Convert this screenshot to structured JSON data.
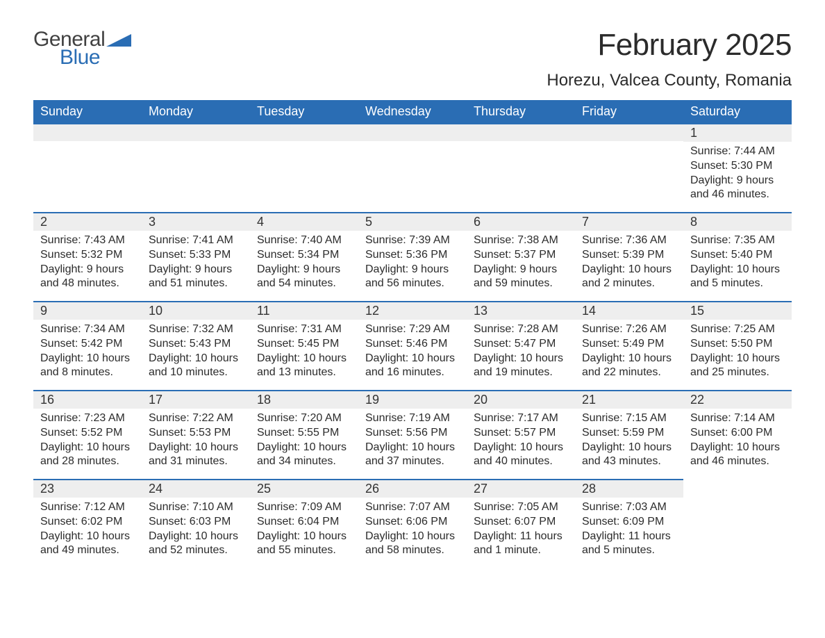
{
  "logo": {
    "general": "General",
    "blue": "Blue",
    "accent_color": "#2a6db4"
  },
  "title": "February 2025",
  "location": "Horezu, Valcea County, Romania",
  "colors": {
    "header_bg": "#2a6db4",
    "header_text": "#ffffff",
    "daynum_bg": "#eeeeee",
    "daynum_border": "#2a6db4",
    "body_text": "#2b2b2b",
    "page_bg": "#ffffff"
  },
  "typography": {
    "title_fontsize": 44,
    "location_fontsize": 24,
    "dow_fontsize": 18,
    "daynum_fontsize": 18,
    "body_fontsize": 16
  },
  "days_of_week": [
    "Sunday",
    "Monday",
    "Tuesday",
    "Wednesday",
    "Thursday",
    "Friday",
    "Saturday"
  ],
  "weeks": [
    [
      null,
      null,
      null,
      null,
      null,
      null,
      {
        "n": "1",
        "sunrise": "Sunrise: 7:44 AM",
        "sunset": "Sunset: 5:30 PM",
        "dl1": "Daylight: 9 hours",
        "dl2": "and 46 minutes."
      }
    ],
    [
      {
        "n": "2",
        "sunrise": "Sunrise: 7:43 AM",
        "sunset": "Sunset: 5:32 PM",
        "dl1": "Daylight: 9 hours",
        "dl2": "and 48 minutes."
      },
      {
        "n": "3",
        "sunrise": "Sunrise: 7:41 AM",
        "sunset": "Sunset: 5:33 PM",
        "dl1": "Daylight: 9 hours",
        "dl2": "and 51 minutes."
      },
      {
        "n": "4",
        "sunrise": "Sunrise: 7:40 AM",
        "sunset": "Sunset: 5:34 PM",
        "dl1": "Daylight: 9 hours",
        "dl2": "and 54 minutes."
      },
      {
        "n": "5",
        "sunrise": "Sunrise: 7:39 AM",
        "sunset": "Sunset: 5:36 PM",
        "dl1": "Daylight: 9 hours",
        "dl2": "and 56 minutes."
      },
      {
        "n": "6",
        "sunrise": "Sunrise: 7:38 AM",
        "sunset": "Sunset: 5:37 PM",
        "dl1": "Daylight: 9 hours",
        "dl2": "and 59 minutes."
      },
      {
        "n": "7",
        "sunrise": "Sunrise: 7:36 AM",
        "sunset": "Sunset: 5:39 PM",
        "dl1": "Daylight: 10 hours",
        "dl2": "and 2 minutes."
      },
      {
        "n": "8",
        "sunrise": "Sunrise: 7:35 AM",
        "sunset": "Sunset: 5:40 PM",
        "dl1": "Daylight: 10 hours",
        "dl2": "and 5 minutes."
      }
    ],
    [
      {
        "n": "9",
        "sunrise": "Sunrise: 7:34 AM",
        "sunset": "Sunset: 5:42 PM",
        "dl1": "Daylight: 10 hours",
        "dl2": "and 8 minutes."
      },
      {
        "n": "10",
        "sunrise": "Sunrise: 7:32 AM",
        "sunset": "Sunset: 5:43 PM",
        "dl1": "Daylight: 10 hours",
        "dl2": "and 10 minutes."
      },
      {
        "n": "11",
        "sunrise": "Sunrise: 7:31 AM",
        "sunset": "Sunset: 5:45 PM",
        "dl1": "Daylight: 10 hours",
        "dl2": "and 13 minutes."
      },
      {
        "n": "12",
        "sunrise": "Sunrise: 7:29 AM",
        "sunset": "Sunset: 5:46 PM",
        "dl1": "Daylight: 10 hours",
        "dl2": "and 16 minutes."
      },
      {
        "n": "13",
        "sunrise": "Sunrise: 7:28 AM",
        "sunset": "Sunset: 5:47 PM",
        "dl1": "Daylight: 10 hours",
        "dl2": "and 19 minutes."
      },
      {
        "n": "14",
        "sunrise": "Sunrise: 7:26 AM",
        "sunset": "Sunset: 5:49 PM",
        "dl1": "Daylight: 10 hours",
        "dl2": "and 22 minutes."
      },
      {
        "n": "15",
        "sunrise": "Sunrise: 7:25 AM",
        "sunset": "Sunset: 5:50 PM",
        "dl1": "Daylight: 10 hours",
        "dl2": "and 25 minutes."
      }
    ],
    [
      {
        "n": "16",
        "sunrise": "Sunrise: 7:23 AM",
        "sunset": "Sunset: 5:52 PM",
        "dl1": "Daylight: 10 hours",
        "dl2": "and 28 minutes."
      },
      {
        "n": "17",
        "sunrise": "Sunrise: 7:22 AM",
        "sunset": "Sunset: 5:53 PM",
        "dl1": "Daylight: 10 hours",
        "dl2": "and 31 minutes."
      },
      {
        "n": "18",
        "sunrise": "Sunrise: 7:20 AM",
        "sunset": "Sunset: 5:55 PM",
        "dl1": "Daylight: 10 hours",
        "dl2": "and 34 minutes."
      },
      {
        "n": "19",
        "sunrise": "Sunrise: 7:19 AM",
        "sunset": "Sunset: 5:56 PM",
        "dl1": "Daylight: 10 hours",
        "dl2": "and 37 minutes."
      },
      {
        "n": "20",
        "sunrise": "Sunrise: 7:17 AM",
        "sunset": "Sunset: 5:57 PM",
        "dl1": "Daylight: 10 hours",
        "dl2": "and 40 minutes."
      },
      {
        "n": "21",
        "sunrise": "Sunrise: 7:15 AM",
        "sunset": "Sunset: 5:59 PM",
        "dl1": "Daylight: 10 hours",
        "dl2": "and 43 minutes."
      },
      {
        "n": "22",
        "sunrise": "Sunrise: 7:14 AM",
        "sunset": "Sunset: 6:00 PM",
        "dl1": "Daylight: 10 hours",
        "dl2": "and 46 minutes."
      }
    ],
    [
      {
        "n": "23",
        "sunrise": "Sunrise: 7:12 AM",
        "sunset": "Sunset: 6:02 PM",
        "dl1": "Daylight: 10 hours",
        "dl2": "and 49 minutes."
      },
      {
        "n": "24",
        "sunrise": "Sunrise: 7:10 AM",
        "sunset": "Sunset: 6:03 PM",
        "dl1": "Daylight: 10 hours",
        "dl2": "and 52 minutes."
      },
      {
        "n": "25",
        "sunrise": "Sunrise: 7:09 AM",
        "sunset": "Sunset: 6:04 PM",
        "dl1": "Daylight: 10 hours",
        "dl2": "and 55 minutes."
      },
      {
        "n": "26",
        "sunrise": "Sunrise: 7:07 AM",
        "sunset": "Sunset: 6:06 PM",
        "dl1": "Daylight: 10 hours",
        "dl2": "and 58 minutes."
      },
      {
        "n": "27",
        "sunrise": "Sunrise: 7:05 AM",
        "sunset": "Sunset: 6:07 PM",
        "dl1": "Daylight: 11 hours",
        "dl2": "and 1 minute."
      },
      {
        "n": "28",
        "sunrise": "Sunrise: 7:03 AM",
        "sunset": "Sunset: 6:09 PM",
        "dl1": "Daylight: 11 hours",
        "dl2": "and 5 minutes."
      },
      null
    ]
  ]
}
